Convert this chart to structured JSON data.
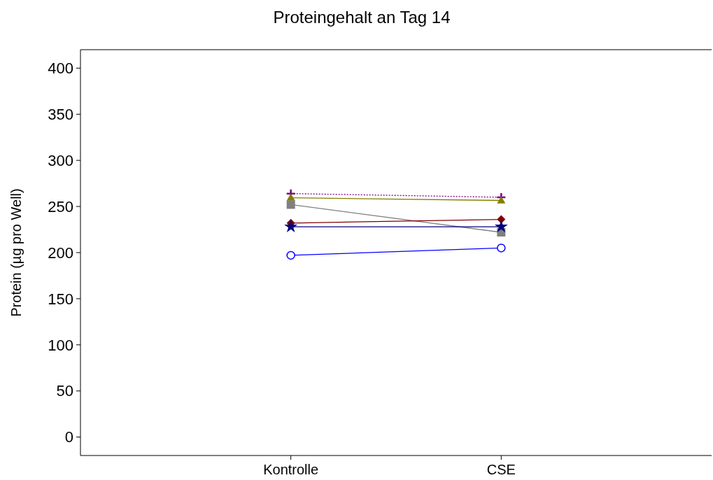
{
  "chart_data": {
    "type": "line",
    "title": "Proteingehalt an Tag 14",
    "ylabel": "Protein (µg pro Well)",
    "categories": [
      "Kontrolle",
      "CSE"
    ],
    "ylim": [
      -20,
      420
    ],
    "yticks": [
      0,
      50,
      100,
      150,
      200,
      250,
      300,
      350,
      400
    ],
    "grid": false,
    "series": [
      {
        "color": "#800080",
        "marker": "cross",
        "line_style": "dotted",
        "values": [
          264,
          260
        ]
      },
      {
        "color": "#808000",
        "marker": "triangle",
        "line_style": "solid",
        "values": [
          259.5,
          256.5
        ]
      },
      {
        "color": "#808080",
        "marker": "square",
        "line_style": "solid",
        "values": [
          252,
          222
        ]
      },
      {
        "color": "#800000",
        "marker": "diamond",
        "line_style": "solid",
        "values": [
          232,
          236
        ]
      },
      {
        "color": "#000080",
        "marker": "star",
        "line_style": "solid",
        "values": [
          228,
          228
        ]
      },
      {
        "color": "#0000ff",
        "marker": "circle",
        "line_style": "solid",
        "values": [
          197,
          205
        ]
      }
    ]
  }
}
